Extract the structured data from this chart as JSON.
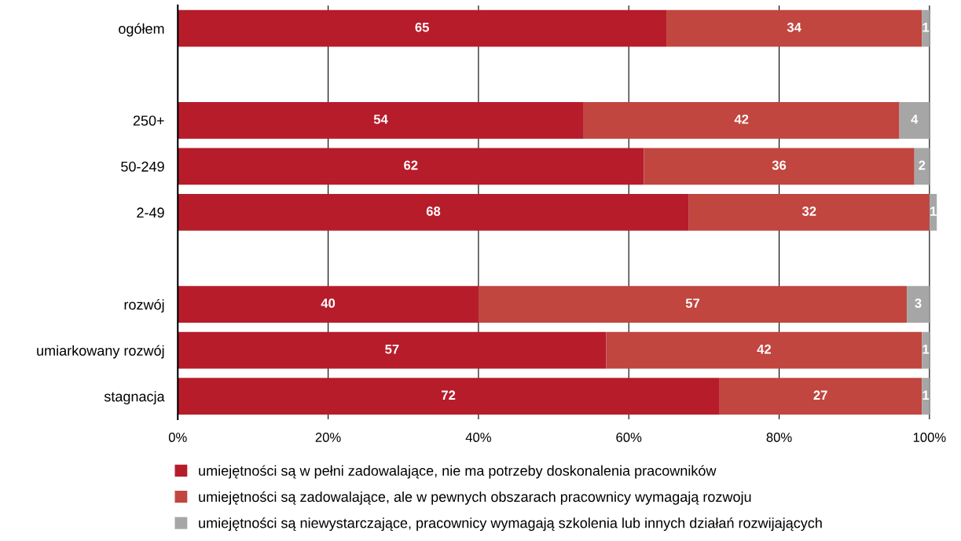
{
  "chart_data": {
    "type": "bar",
    "orientation": "horizontal",
    "stacked": true,
    "categories": [
      "ogółem",
      null,
      "250+",
      "50-249",
      "2-49",
      null,
      "rozwój",
      "umiarkowany rozwój",
      "stagnacja"
    ],
    "series": [
      {
        "name": "umiejętności są w pełni zadowalające, nie ma potrzeby doskonalenia pracowników",
        "color": "#b71c2b",
        "values": [
          65,
          null,
          54,
          62,
          68,
          null,
          40,
          57,
          72
        ],
        "value_labels": [
          "65",
          null,
          "54",
          "62",
          "68",
          null,
          "40",
          "57",
          "72"
        ]
      },
      {
        "name": "umiejętności są zadowalające, ale w pewnych obszarach pracownicy wymagają rozwoju",
        "color": "#c0463f",
        "values": [
          34,
          null,
          42,
          36,
          32,
          null,
          57,
          42,
          27
        ],
        "value_labels": [
          "34",
          null,
          "42",
          "36",
          "32",
          null,
          "57",
          "42",
          "27"
        ]
      },
      {
        "name": "umiejętności są niewystarczające, pracownicy wymagają szkolenia lub innych działań rozwijających",
        "color": "#a6a6a6",
        "values": [
          1,
          null,
          4,
          2,
          1,
          null,
          3,
          1,
          1
        ],
        "value_labels": [
          "1",
          null,
          "4",
          "2",
          "1",
          null,
          "3",
          "1",
          "1"
        ]
      }
    ],
    "xlim": [
      0,
      101
    ],
    "xticks": [
      {
        "value": 0,
        "label": "0%"
      },
      {
        "value": 20,
        "label": "20%"
      },
      {
        "value": 40,
        "label": "40%"
      },
      {
        "value": 60,
        "label": "60%"
      },
      {
        "value": 80,
        "label": "80%"
      },
      {
        "value": 100,
        "label": "100%"
      }
    ],
    "grid": "x",
    "legend": "bottom"
  }
}
